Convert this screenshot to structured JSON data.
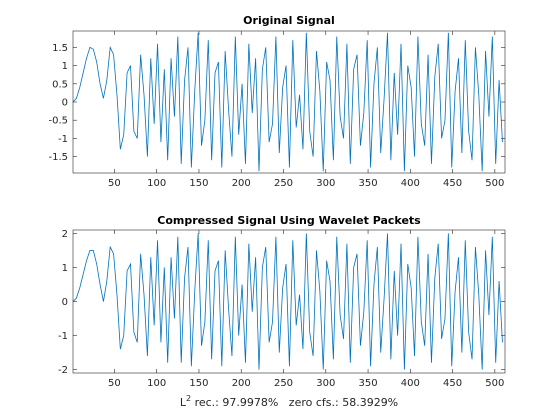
{
  "chart_data": [
    {
      "type": "line",
      "title": "Original Signal",
      "x": [
        1,
        5,
        9,
        13,
        17,
        21,
        25,
        29,
        33,
        37,
        41,
        45,
        49,
        53,
        57,
        61,
        65,
        69,
        73,
        77,
        81,
        85,
        89,
        93,
        97,
        101,
        105,
        109,
        113,
        117,
        121,
        125,
        129,
        133,
        137,
        141,
        145,
        149,
        153,
        157,
        161,
        165,
        169,
        173,
        177,
        181,
        185,
        189,
        193,
        197,
        201,
        205,
        209,
        213,
        217,
        221,
        225,
        229,
        233,
        237,
        241,
        245,
        249,
        253,
        257,
        261,
        265,
        269,
        273,
        277,
        281,
        285,
        289,
        293,
        297,
        301,
        305,
        309,
        313,
        317,
        321,
        325,
        329,
        333,
        337,
        341,
        345,
        349,
        353,
        357,
        361,
        365,
        369,
        373,
        377,
        381,
        385,
        389,
        393,
        397,
        401,
        405,
        409,
        413,
        417,
        421,
        425,
        429,
        433,
        437,
        441,
        445,
        449,
        453,
        457,
        461,
        465,
        469,
        473,
        477,
        481,
        485,
        489,
        493,
        497,
        501,
        505,
        509
      ],
      "series": [
        {
          "color": "#0072bd",
          "values": [
            0,
            0.1,
            0.4,
            0.8,
            1.2,
            1.5,
            1.45,
            1.1,
            0.5,
            0.1,
            0.6,
            1.5,
            1.3,
            0.2,
            -1.3,
            -0.9,
            0.8,
            1.0,
            -0.8,
            -1.0,
            1.3,
            0.2,
            -1.5,
            1.2,
            -0.6,
            1.6,
            -1.1,
            0.9,
            -1.6,
            1.2,
            -0.4,
            1.8,
            -1.7,
            0.6,
            1.5,
            -1.8,
            0.3,
            1.9,
            -1.2,
            -0.5,
            1.7,
            -1.6,
            0.8,
            1.1,
            -1.8,
            1.4,
            -0.2,
            -1.5,
            1.8,
            -0.9,
            0.5,
            -1.7,
            1.6,
            -0.3,
            1.2,
            -1.9,
            0.9,
            1.5,
            -1.1,
            -0.6,
            1.8,
            -1.4,
            0.4,
            1.0,
            -1.8,
            1.7,
            -0.7,
            0.2,
            -1.3,
            1.9,
            -0.8,
            -1.5,
            1.4,
            0.3,
            -1.9,
            1.1,
            0.6,
            -1.6,
            1.8,
            -0.4,
            -1.0,
            1.6,
            -1.7,
            0.9,
            1.3,
            -1.2,
            -0.3,
            1.7,
            -1.8,
            0.5,
            1.5,
            -1.4,
            0.1,
            1.9,
            -1.6,
            0.8,
            -0.9,
            1.6,
            -1.9,
            1.0,
            0.4,
            -1.5,
            1.8,
            -0.6,
            -1.2,
            1.3,
            -1.7,
            0.7,
            1.6,
            -1.0,
            -0.5,
            1.9,
            -1.8,
            0.3,
            1.2,
            -1.4,
            1.7,
            -0.8,
            -1.6,
            1.5,
            0.2,
            -1.9,
            1.4,
            -0.4,
            1.8,
            -1.7,
            0.6,
            -1.1
          ]
        }
      ],
      "xlim": [
        1,
        512
      ],
      "xticks": [
        50,
        100,
        150,
        200,
        250,
        300,
        350,
        400,
        450,
        500
      ],
      "ylim": [
        -1.95,
        1.95
      ],
      "yticks": [
        -1.5,
        -1,
        -0.5,
        0,
        0.5,
        1,
        1.5
      ]
    },
    {
      "type": "line",
      "title": "Compressed Signal Using Wavelet Packets",
      "x": [
        1,
        5,
        9,
        13,
        17,
        21,
        25,
        29,
        33,
        37,
        41,
        45,
        49,
        53,
        57,
        61,
        65,
        69,
        73,
        77,
        81,
        85,
        89,
        93,
        97,
        101,
        105,
        109,
        113,
        117,
        121,
        125,
        129,
        133,
        137,
        141,
        145,
        149,
        153,
        157,
        161,
        165,
        169,
        173,
        177,
        181,
        185,
        189,
        193,
        197,
        201,
        205,
        209,
        213,
        217,
        221,
        225,
        229,
        233,
        237,
        241,
        245,
        249,
        253,
        257,
        261,
        265,
        269,
        273,
        277,
        281,
        285,
        289,
        293,
        297,
        301,
        305,
        309,
        313,
        317,
        321,
        325,
        329,
        333,
        337,
        341,
        345,
        349,
        353,
        357,
        361,
        365,
        369,
        373,
        377,
        381,
        385,
        389,
        393,
        397,
        401,
        405,
        409,
        413,
        417,
        421,
        425,
        429,
        433,
        437,
        441,
        445,
        449,
        453,
        457,
        461,
        465,
        469,
        473,
        477,
        481,
        485,
        489,
        493,
        497,
        501,
        505,
        509
      ],
      "series": [
        {
          "color": "#0072bd",
          "values": [
            0,
            0.1,
            0.4,
            0.8,
            1.2,
            1.5,
            1.5,
            1.1,
            0.5,
            0.0,
            0.6,
            1.6,
            1.4,
            0.2,
            -1.4,
            -1.0,
            0.9,
            1.1,
            -0.9,
            -1.2,
            1.4,
            0.2,
            -1.6,
            1.3,
            -0.7,
            1.8,
            -1.2,
            1.0,
            -1.8,
            1.3,
            -0.5,
            1.9,
            -1.8,
            0.7,
            1.6,
            -1.9,
            0.3,
            2.0,
            -1.3,
            -0.6,
            1.8,
            -1.7,
            0.9,
            1.2,
            -1.9,
            1.5,
            -0.2,
            -1.6,
            1.9,
            -1.0,
            0.5,
            -1.8,
            1.7,
            -0.3,
            1.3,
            -2.0,
            1.0,
            1.6,
            -1.2,
            -0.6,
            1.9,
            -1.5,
            0.4,
            1.1,
            -1.9,
            1.8,
            -0.7,
            0.2,
            -1.4,
            2.0,
            -0.9,
            -1.6,
            1.5,
            0.3,
            -2.0,
            1.2,
            0.6,
            -1.7,
            1.9,
            -0.4,
            -1.1,
            1.7,
            -1.8,
            1.0,
            1.4,
            -1.3,
            -0.3,
            1.8,
            -1.9,
            0.5,
            1.6,
            -1.5,
            0.1,
            2.0,
            -1.7,
            0.9,
            -1.0,
            1.7,
            -2.0,
            1.1,
            0.4,
            -1.6,
            1.9,
            -0.6,
            -1.3,
            1.4,
            -1.8,
            0.7,
            1.7,
            -1.1,
            -0.5,
            2.0,
            -1.9,
            0.3,
            1.3,
            -1.5,
            1.8,
            -0.9,
            -1.7,
            1.6,
            0.2,
            -2.0,
            1.5,
            -0.4,
            1.9,
            -1.8,
            0.6,
            -1.2
          ]
        }
      ],
      "xlim": [
        1,
        512
      ],
      "xticks": [
        50,
        100,
        150,
        200,
        250,
        300,
        350,
        400,
        450,
        500
      ],
      "ylim": [
        -2.1,
        2.1
      ],
      "yticks": [
        -2,
        -1,
        0,
        1,
        2
      ],
      "xlabel": {
        "base": "L",
        "superscript": "2",
        "text": " rec.: 97.9978%   zero cfs.: 58.3929%"
      }
    }
  ]
}
